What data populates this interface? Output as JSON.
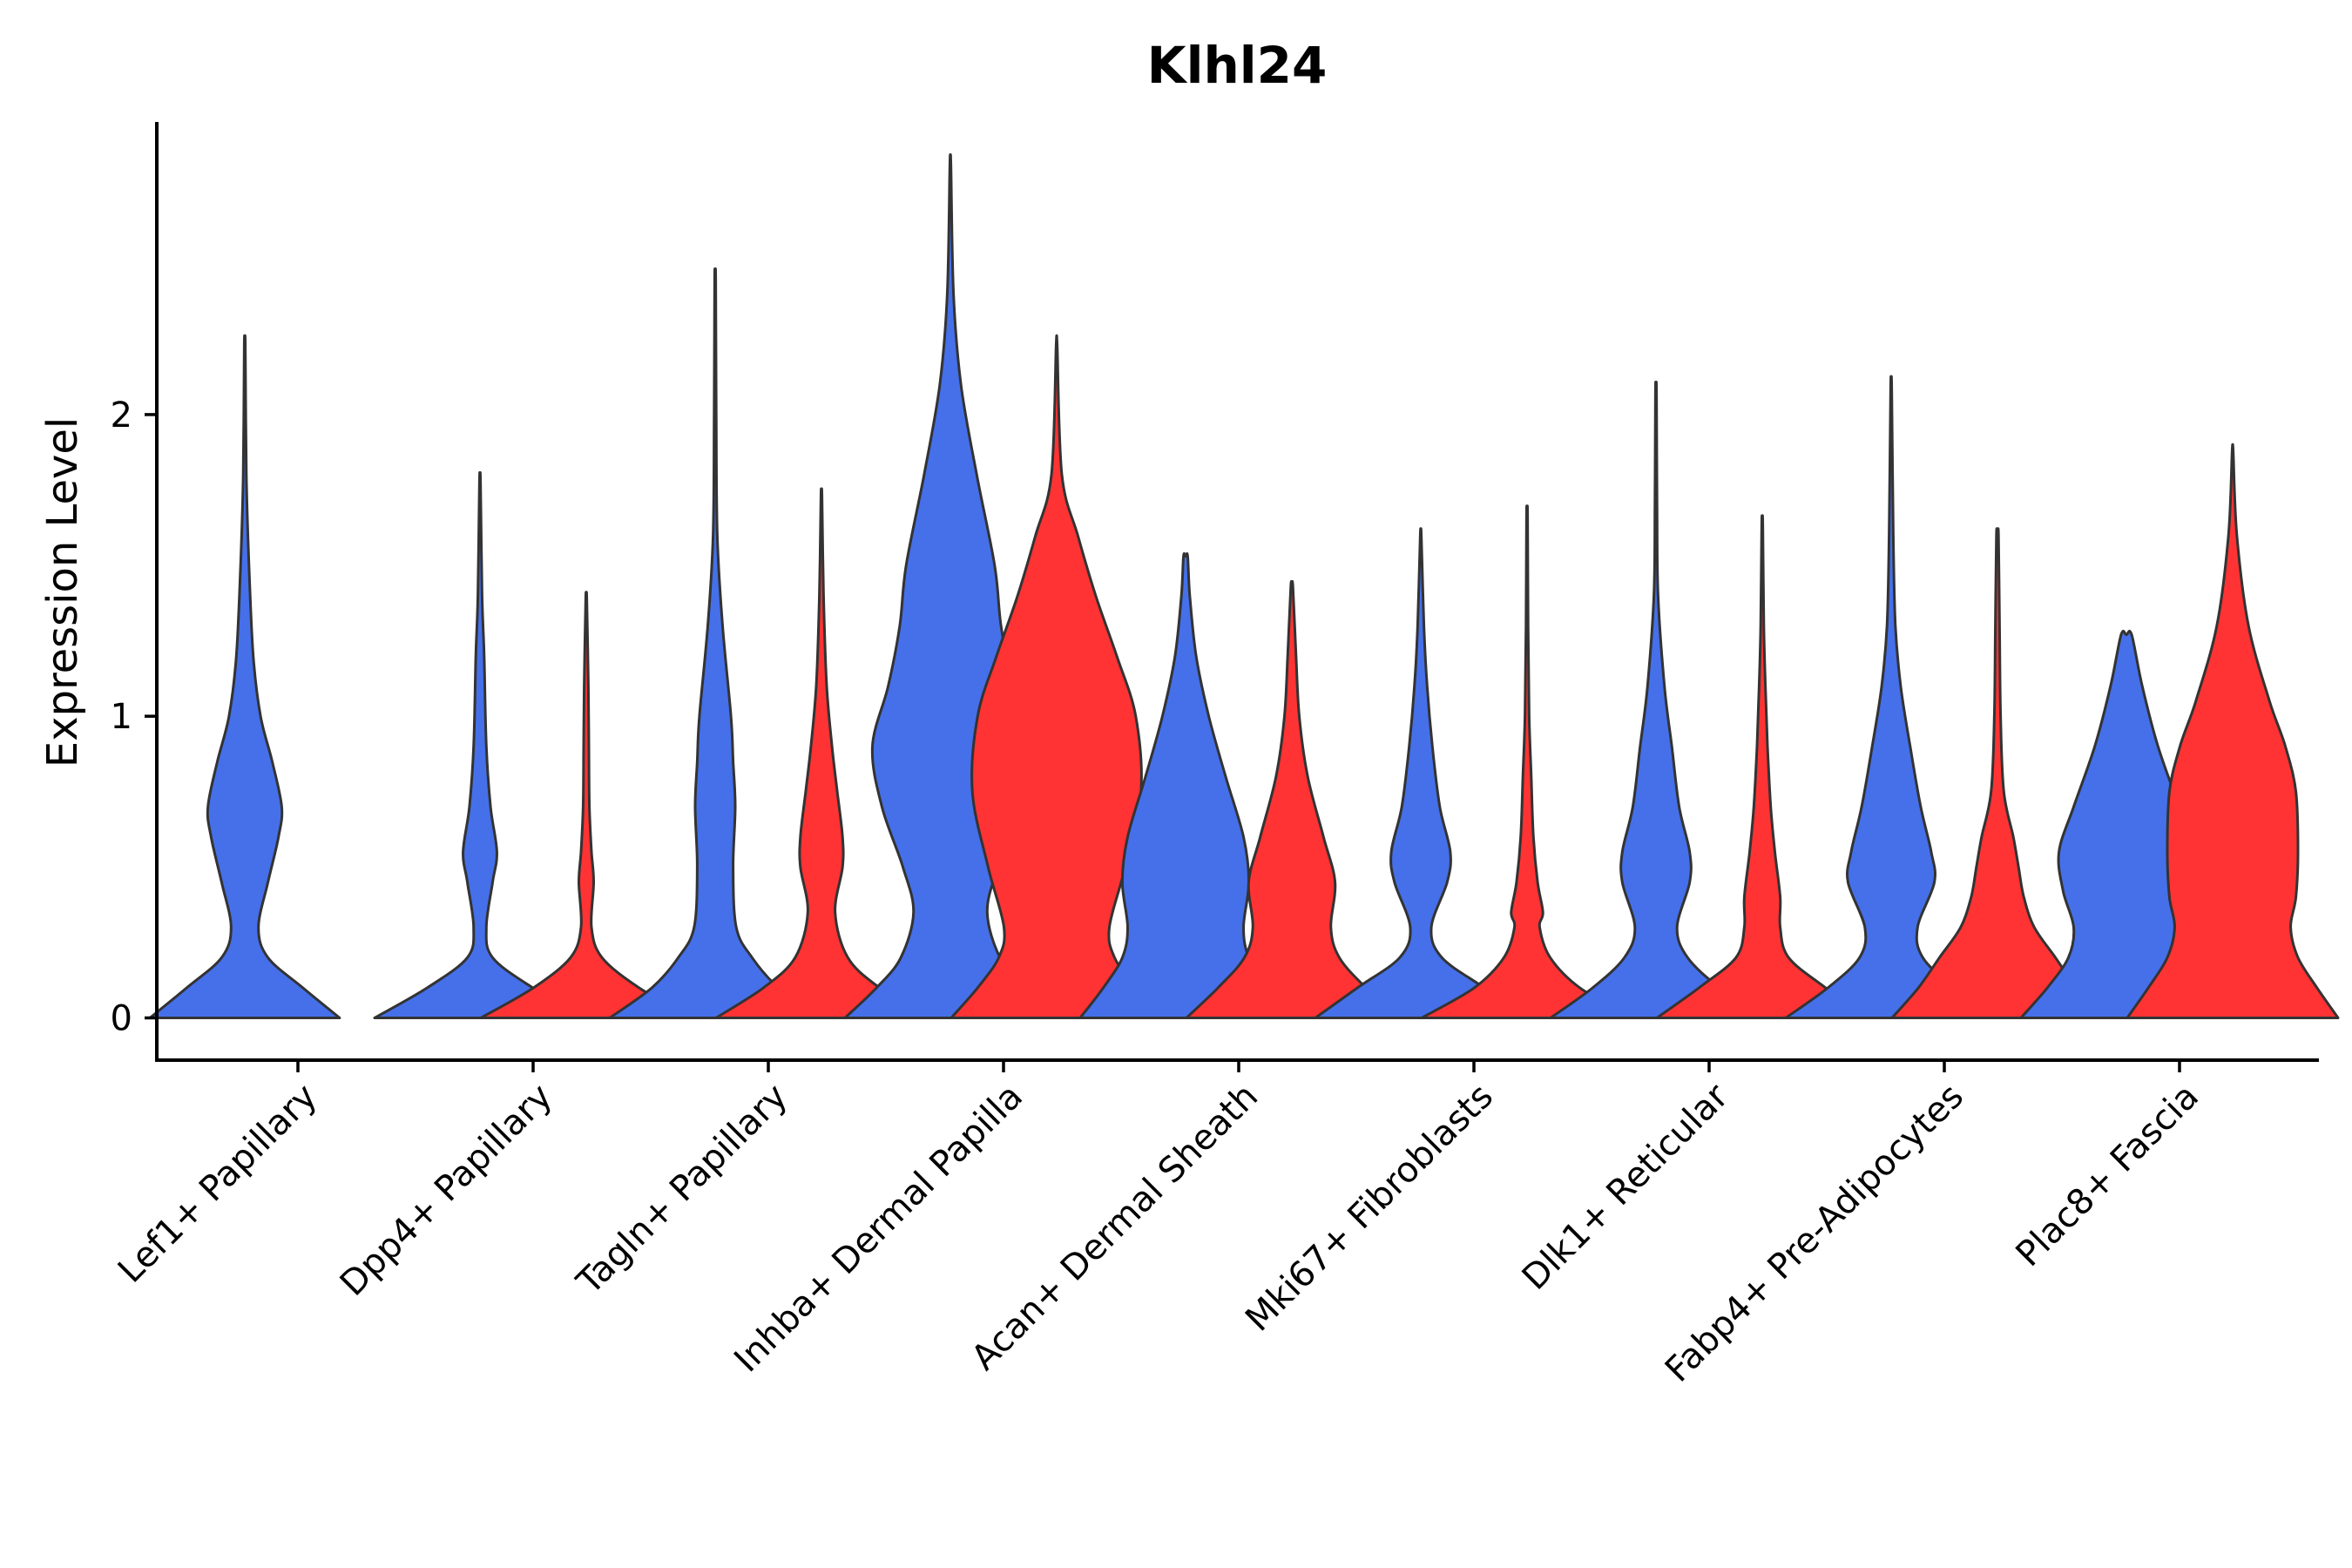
{
  "chart_data": {
    "type": "violin",
    "title": "Klhl24",
    "xlabel": "",
    "ylabel": "Expression Level",
    "ylim": [
      -0.14,
      2.97
    ],
    "yticks": [
      0,
      1,
      2
    ],
    "colors": {
      "group_a": "#4570EA",
      "group_b": "#FF3333",
      "outline": "#333333"
    },
    "categories": [
      "Lef1+ Papillary",
      "Dpp4+ Papillary",
      "Tagln+ Papillary",
      "Inhba+ Dermal Papilla",
      "Acan+ Dermal Sheath",
      "Mki67+ Fibroblasts",
      "Dlk1+ Reticular",
      "Fabp4+ Pre-Adipocytes",
      "Plac8+ Fascia"
    ],
    "violins": [
      {
        "category": "Lef1+ Papillary",
        "group": "a",
        "max": 2.23,
        "profile": [
          [
            0,
            0.9
          ],
          [
            0.1,
            0.55
          ],
          [
            0.2,
            0.22
          ],
          [
            0.3,
            0.13
          ],
          [
            0.45,
            0.22
          ],
          [
            0.6,
            0.32
          ],
          [
            0.7,
            0.35
          ],
          [
            0.85,
            0.26
          ],
          [
            1.0,
            0.15
          ],
          [
            1.2,
            0.08
          ],
          [
            1.5,
            0.04
          ],
          [
            1.8,
            0.015
          ],
          [
            2.23,
            0.005
          ]
        ]
      },
      {
        "category": "Dpp4+ Papillary",
        "group": "a",
        "max": 1.78,
        "profile": [
          [
            0,
            1.0
          ],
          [
            0.1,
            0.5
          ],
          [
            0.2,
            0.12
          ],
          [
            0.3,
            0.06
          ],
          [
            0.45,
            0.12
          ],
          [
            0.55,
            0.16
          ],
          [
            0.7,
            0.1
          ],
          [
            0.9,
            0.06
          ],
          [
            1.2,
            0.04
          ],
          [
            1.4,
            0.02
          ],
          [
            1.78,
            0.005
          ]
        ]
      },
      {
        "category": "Dpp4+ Papillary",
        "group": "b",
        "max": 1.39,
        "profile": [
          [
            0,
            1.0
          ],
          [
            0.1,
            0.5
          ],
          [
            0.2,
            0.15
          ],
          [
            0.3,
            0.05
          ],
          [
            0.45,
            0.07
          ],
          [
            0.55,
            0.05
          ],
          [
            0.7,
            0.03
          ],
          [
            0.9,
            0.025
          ],
          [
            1.1,
            0.02
          ],
          [
            1.39,
            0.005
          ]
        ]
      },
      {
        "category": "Tagln+ Papillary",
        "group": "a",
        "max": 2.45,
        "profile": [
          [
            0,
            1.0
          ],
          [
            0.1,
            0.6
          ],
          [
            0.2,
            0.35
          ],
          [
            0.3,
            0.2
          ],
          [
            0.5,
            0.17
          ],
          [
            0.7,
            0.19
          ],
          [
            0.85,
            0.17
          ],
          [
            1.0,
            0.15
          ],
          [
            1.3,
            0.07
          ],
          [
            1.6,
            0.02
          ],
          [
            2.0,
            0.01
          ],
          [
            2.45,
            0.005
          ]
        ]
      },
      {
        "category": "Tagln+ Papillary",
        "group": "b",
        "max": 1.73,
        "profile": [
          [
            0,
            1.0
          ],
          [
            0.1,
            0.55
          ],
          [
            0.2,
            0.25
          ],
          [
            0.35,
            0.13
          ],
          [
            0.5,
            0.2
          ],
          [
            0.6,
            0.2
          ],
          [
            0.75,
            0.15
          ],
          [
            0.9,
            0.1
          ],
          [
            1.1,
            0.05
          ],
          [
            1.4,
            0.02
          ],
          [
            1.73,
            0.005
          ]
        ]
      },
      {
        "category": "Inhba+ Dermal Papilla",
        "group": "a",
        "max": 2.83,
        "profile": [
          [
            0,
            1.0
          ],
          [
            0.1,
            0.7
          ],
          [
            0.2,
            0.47
          ],
          [
            0.35,
            0.35
          ],
          [
            0.5,
            0.45
          ],
          [
            0.7,
            0.65
          ],
          [
            0.9,
            0.74
          ],
          [
            1.1,
            0.59
          ],
          [
            1.3,
            0.48
          ],
          [
            1.5,
            0.42
          ],
          [
            1.8,
            0.25
          ],
          [
            2.1,
            0.1
          ],
          [
            2.4,
            0.03
          ],
          [
            2.83,
            0.005
          ]
        ]
      },
      {
        "category": "Inhba+ Dermal Papilla",
        "group": "b",
        "max": 2.23,
        "profile": [
          [
            0,
            1.0
          ],
          [
            0.1,
            0.75
          ],
          [
            0.2,
            0.55
          ],
          [
            0.3,
            0.5
          ],
          [
            0.5,
            0.65
          ],
          [
            0.75,
            0.8
          ],
          [
            1.0,
            0.75
          ],
          [
            1.2,
            0.57
          ],
          [
            1.4,
            0.37
          ],
          [
            1.6,
            0.2
          ],
          [
            1.8,
            0.05
          ],
          [
            2.23,
            0.005
          ]
        ]
      },
      {
        "category": "Acan+ Dermal Sheath",
        "group": "a",
        "max": 1.53,
        "profile": [
          [
            0,
            1.0
          ],
          [
            0.1,
            0.78
          ],
          [
            0.2,
            0.6
          ],
          [
            0.3,
            0.55
          ],
          [
            0.45,
            0.6
          ],
          [
            0.6,
            0.55
          ],
          [
            0.8,
            0.38
          ],
          [
            1.0,
            0.22
          ],
          [
            1.2,
            0.1
          ],
          [
            1.4,
            0.04
          ],
          [
            1.53,
            0.02
          ]
        ]
      },
      {
        "category": "Acan+ Dermal Sheath",
        "group": "b",
        "max": 1.43,
        "profile": [
          [
            0,
            1.0
          ],
          [
            0.1,
            0.7
          ],
          [
            0.2,
            0.45
          ],
          [
            0.3,
            0.37
          ],
          [
            0.45,
            0.41
          ],
          [
            0.6,
            0.3
          ],
          [
            0.8,
            0.15
          ],
          [
            1.0,
            0.07
          ],
          [
            1.2,
            0.04
          ],
          [
            1.43,
            0.01
          ]
        ]
      },
      {
        "category": "Mki67+ Fibroblasts",
        "group": "a",
        "max": 1.6,
        "profile": [
          [
            0,
            1.0
          ],
          [
            0.1,
            0.6
          ],
          [
            0.2,
            0.2
          ],
          [
            0.3,
            0.1
          ],
          [
            0.45,
            0.25
          ],
          [
            0.55,
            0.28
          ],
          [
            0.7,
            0.18
          ],
          [
            0.9,
            0.11
          ],
          [
            1.1,
            0.06
          ],
          [
            1.3,
            0.03
          ],
          [
            1.6,
            0.005
          ]
        ]
      },
      {
        "category": "Mki67+ Fibroblasts",
        "group": "b",
        "max": 1.67,
        "profile": [
          [
            0,
            1.0
          ],
          [
            0.1,
            0.5
          ],
          [
            0.2,
            0.22
          ],
          [
            0.3,
            0.12
          ],
          [
            0.35,
            0.15
          ],
          [
            0.45,
            0.1
          ],
          [
            0.6,
            0.06
          ],
          [
            0.8,
            0.04
          ],
          [
            1.0,
            0.02
          ],
          [
            1.3,
            0.01
          ],
          [
            1.67,
            0.005
          ]
        ]
      },
      {
        "category": "Dlk1+ Reticular",
        "group": "a",
        "max": 2.08,
        "profile": [
          [
            0,
            1.0
          ],
          [
            0.1,
            0.6
          ],
          [
            0.2,
            0.3
          ],
          [
            0.3,
            0.2
          ],
          [
            0.45,
            0.32
          ],
          [
            0.55,
            0.32
          ],
          [
            0.7,
            0.22
          ],
          [
            0.9,
            0.15
          ],
          [
            1.1,
            0.08
          ],
          [
            1.4,
            0.02
          ],
          [
            1.7,
            0.01
          ],
          [
            2.08,
            0.005
          ]
        ]
      },
      {
        "category": "Dlk1+ Reticular",
        "group": "b",
        "max": 1.64,
        "profile": [
          [
            0,
            1.0
          ],
          [
            0.1,
            0.6
          ],
          [
            0.2,
            0.25
          ],
          [
            0.3,
            0.17
          ],
          [
            0.4,
            0.17
          ],
          [
            0.55,
            0.12
          ],
          [
            0.7,
            0.08
          ],
          [
            0.9,
            0.05
          ],
          [
            1.1,
            0.03
          ],
          [
            1.3,
            0.015
          ],
          [
            1.64,
            0.005
          ]
        ]
      },
      {
        "category": "Fabp4+ Pre-Adipocytes",
        "group": "a",
        "max": 2.09,
        "profile": [
          [
            0,
            1.0
          ],
          [
            0.1,
            0.6
          ],
          [
            0.2,
            0.3
          ],
          [
            0.3,
            0.25
          ],
          [
            0.45,
            0.41
          ],
          [
            0.55,
            0.38
          ],
          [
            0.7,
            0.28
          ],
          [
            0.9,
            0.18
          ],
          [
            1.1,
            0.09
          ],
          [
            1.3,
            0.04
          ],
          [
            1.6,
            0.02
          ],
          [
            2.09,
            0.005
          ]
        ]
      },
      {
        "category": "Fabp4+ Pre-Adipocytes",
        "group": "b",
        "max": 1.6,
        "profile": [
          [
            0,
            1.0
          ],
          [
            0.1,
            0.75
          ],
          [
            0.2,
            0.55
          ],
          [
            0.3,
            0.35
          ],
          [
            0.4,
            0.25
          ],
          [
            0.5,
            0.2
          ],
          [
            0.6,
            0.15
          ],
          [
            0.75,
            0.06
          ],
          [
            1.0,
            0.03
          ],
          [
            1.3,
            0.02
          ],
          [
            1.6,
            0.01
          ]
        ]
      },
      {
        "category": "Plac8+ Fascia",
        "group": "a",
        "max": 1.27,
        "profile": [
          [
            0,
            1.0
          ],
          [
            0.1,
            0.75
          ],
          [
            0.2,
            0.55
          ],
          [
            0.3,
            0.5
          ],
          [
            0.42,
            0.6
          ],
          [
            0.55,
            0.64
          ],
          [
            0.7,
            0.5
          ],
          [
            0.9,
            0.3
          ],
          [
            1.1,
            0.15
          ],
          [
            1.27,
            0.05
          ]
        ]
      },
      {
        "category": "Plac8+ Fascia",
        "group": "b",
        "max": 1.88,
        "profile": [
          [
            0,
            1.0
          ],
          [
            0.1,
            0.8
          ],
          [
            0.2,
            0.62
          ],
          [
            0.3,
            0.55
          ],
          [
            0.4,
            0.6
          ],
          [
            0.55,
            0.62
          ],
          [
            0.75,
            0.6
          ],
          [
            0.9,
            0.5
          ],
          [
            1.05,
            0.35
          ],
          [
            1.3,
            0.15
          ],
          [
            1.6,
            0.04
          ],
          [
            1.88,
            0.005
          ]
        ]
      }
    ]
  }
}
